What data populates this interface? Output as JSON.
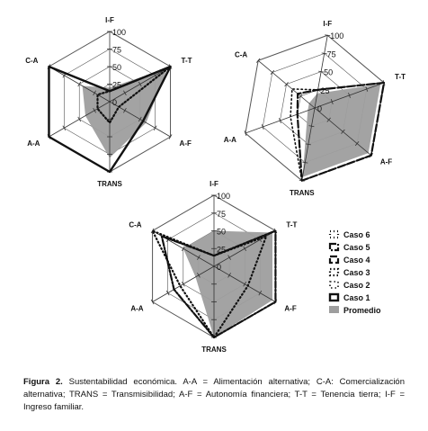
{
  "caption": {
    "label": "Figura 2.",
    "text": " Sustentabilidad económica.  A-A = Alimentación alternativa; C-A: Comercialización alternativa; TRANS = Transmisibilidad; A-F = Autonomía financiera; T-T = Tenencia tierra; I-F = Ingreso familiar."
  },
  "legend": [
    {
      "name": "Caso 6",
      "dash": "1 3",
      "width": 2.2
    },
    {
      "name": "Caso 5",
      "dash": "7 2 2 2",
      "width": 2.2
    },
    {
      "name": "Caso 4",
      "dash": "8 3",
      "width": 2.2
    },
    {
      "name": "Caso 3",
      "dash": "1.5 2.5",
      "width": 2.2
    },
    {
      "name": "Caso 2",
      "dash": "1.5 3",
      "width": 1.6
    },
    {
      "name": "Caso 1",
      "dash": "",
      "width": 2.4
    },
    {
      "name": "Promedio",
      "fill": "#9e9e9e"
    }
  ],
  "chart_data": [
    {
      "type": "radar",
      "axes": [
        "I-F",
        "T-T",
        "A-F",
        "TRANS",
        "A-A",
        "C-A"
      ],
      "rlim": [
        0,
        100
      ],
      "ticks": [
        "0",
        "25",
        "50",
        "75",
        "100"
      ],
      "series": [
        {
          "name": "Promedio",
          "values": [
            20,
            95,
            60,
            80,
            40,
            45
          ]
        },
        {
          "name": "Caso 1",
          "values": [
            15,
            100,
            55,
            100,
            100,
            100
          ]
        },
        {
          "name": "Caso 3",
          "values": [
            15,
            100,
            15,
            30,
            20,
            20
          ]
        }
      ]
    },
    {
      "type": "radar",
      "axes": [
        "I-F",
        "T-T",
        "A-F",
        "TRANS",
        "A-A",
        "C-A"
      ],
      "rlim": [
        0,
        100
      ],
      "ticks": [
        "0",
        "25",
        "50",
        "75",
        "100"
      ],
      "series": [
        {
          "name": "Promedio",
          "values": [
            20,
            95,
            95,
            95,
            10,
            10
          ]
        },
        {
          "name": "Caso 2",
          "values": [
            25,
            100,
            100,
            100,
            35,
            40
          ]
        },
        {
          "name": "Caso 4",
          "values": [
            25,
            100,
            100,
            100,
            25,
            30
          ]
        }
      ]
    },
    {
      "type": "radar",
      "axes": [
        "I-F",
        "T-T",
        "A-F",
        "TRANS",
        "A-A",
        "C-A"
      ],
      "rlim": [
        0,
        100
      ],
      "ticks": [
        "0",
        "25",
        "50",
        "75",
        "100"
      ],
      "series": [
        {
          "name": "Promedio",
          "values": [
            50,
            95,
            95,
            100,
            30,
            50
          ]
        },
        {
          "name": "Caso 5",
          "values": [
            15,
            100,
            100,
            100,
            65,
            85
          ]
        },
        {
          "name": "Caso 6",
          "values": [
            15,
            85,
            55,
            100,
            55,
            100
          ]
        }
      ]
    }
  ]
}
